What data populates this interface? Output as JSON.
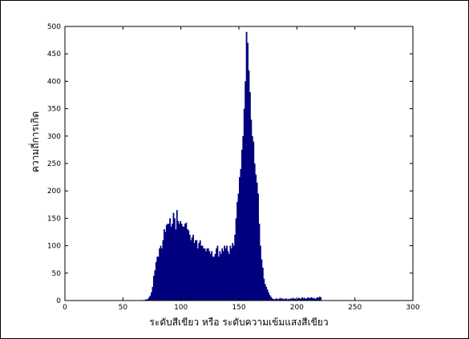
{
  "chart_data": {
    "type": "bar",
    "title": "",
    "xlabel": "ระดับสีเขียว หรือ ระดับความเข้มแสงสีเขียว",
    "ylabel": "ความถี่การเกิด",
    "xlim": [
      0,
      300
    ],
    "ylim": [
      0,
      500
    ],
    "xticks": [
      0,
      50,
      100,
      150,
      200,
      250,
      300
    ],
    "yticks": [
      0,
      50,
      100,
      150,
      200,
      250,
      300,
      350,
      400,
      450,
      500
    ],
    "grid": false,
    "bar_color": "#00007f",
    "x_start": 0,
    "bin_width": 1,
    "values": [
      0,
      0,
      0,
      0,
      0,
      0,
      0,
      0,
      0,
      0,
      0,
      0,
      0,
      0,
      0,
      0,
      0,
      0,
      0,
      0,
      0,
      0,
      0,
      0,
      0,
      0,
      0,
      0,
      0,
      0,
      0,
      0,
      0,
      0,
      0,
      0,
      0,
      0,
      0,
      0,
      0,
      0,
      0,
      0,
      0,
      0,
      0,
      0,
      0,
      0,
      0,
      0,
      0,
      0,
      0,
      0,
      0,
      0,
      0,
      0,
      0,
      0,
      0,
      0,
      0,
      0,
      1,
      0,
      1,
      2,
      2,
      3,
      6,
      9,
      15,
      25,
      45,
      55,
      70,
      80,
      80,
      95,
      100,
      95,
      110,
      130,
      125,
      138,
      140,
      140,
      150,
      135,
      140,
      160,
      150,
      130,
      165,
      145,
      140,
      145,
      140,
      135,
      135,
      140,
      142,
      130,
      128,
      120,
      110,
      115,
      120,
      105,
      110,
      110,
      95,
      105,
      110,
      100,
      100,
      95,
      95,
      90,
      95,
      95,
      90,
      85,
      90,
      80,
      80,
      85,
      95,
      100,
      80,
      90,
      85,
      95,
      90,
      100,
      95,
      100,
      90,
      85,
      100,
      95,
      105,
      100,
      120,
      150,
      180,
      195,
      225,
      240,
      275,
      300,
      350,
      400,
      490,
      470,
      420,
      380,
      330,
      300,
      290,
      250,
      230,
      215,
      195,
      140,
      100,
      75,
      60,
      40,
      30,
      25,
      20,
      15,
      10,
      7,
      4,
      3,
      2,
      3,
      4,
      2,
      3,
      5,
      3,
      4,
      2,
      3,
      4,
      2,
      3,
      2,
      4,
      3,
      5,
      3,
      4,
      2,
      3,
      5,
      4,
      3,
      6,
      4,
      5,
      3,
      4,
      6,
      4,
      5,
      6,
      4,
      5,
      3,
      4,
      6,
      5,
      7,
      6
    ]
  }
}
